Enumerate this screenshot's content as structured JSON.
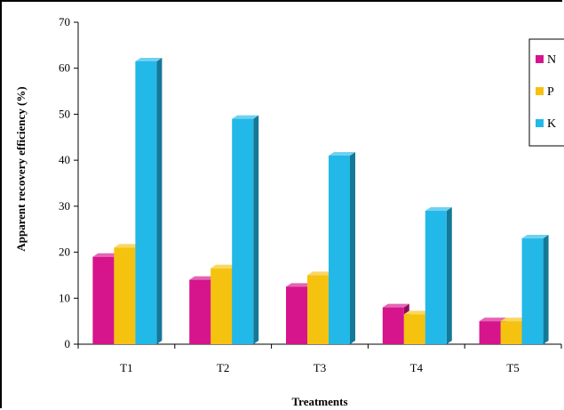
{
  "chart_data": {
    "type": "bar",
    "title": "",
    "xlabel": "Treatments",
    "ylabel": "Apparent recovery efficiency (%)",
    "ylim": [
      0,
      70
    ],
    "yticks": [
      0,
      10,
      20,
      30,
      40,
      50,
      60,
      70
    ],
    "categories": [
      "T1",
      "T2",
      "T3",
      "T4",
      "T5"
    ],
    "series": [
      {
        "name": "N",
        "values": [
          19,
          14,
          12.5,
          8,
          5
        ],
        "color": "#d6148c"
      },
      {
        "name": "P",
        "values": [
          21,
          16.5,
          15,
          6.5,
          5
        ],
        "color": "#f5c20f"
      },
      {
        "name": "K",
        "values": [
          61.5,
          49,
          41,
          29,
          23
        ],
        "color": "#22b8e8"
      }
    ],
    "grid": false,
    "legend_position": "top-right",
    "style": "3d-bars"
  }
}
